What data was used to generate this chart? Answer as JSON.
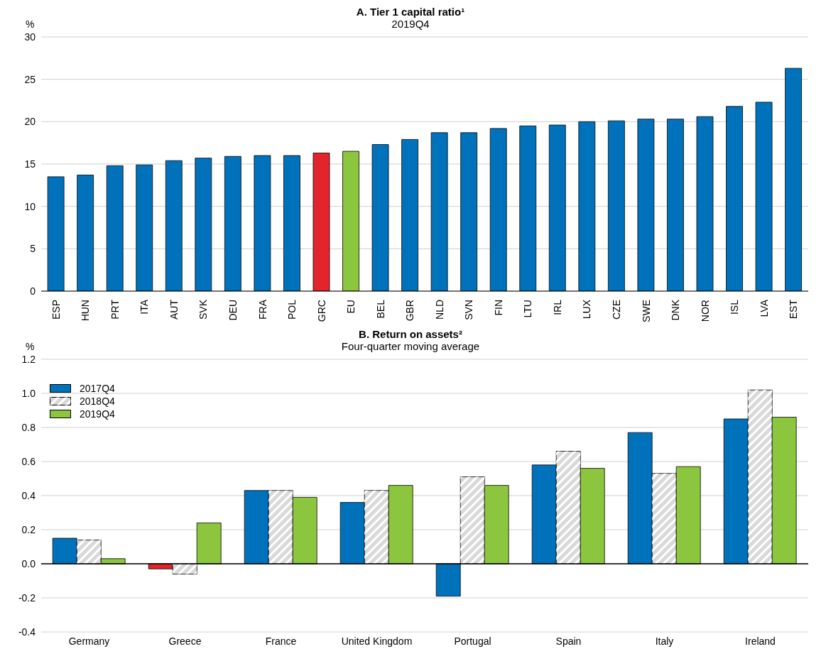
{
  "chart_data": [
    {
      "type": "bar",
      "title": "A. Tier 1 capital ratio¹",
      "subtitle": "2019Q4",
      "ylabel": "%",
      "categories": [
        "ESP",
        "HUN",
        "PRT",
        "ITA",
        "AUT",
        "SVK",
        "DEU",
        "FRA",
        "POL",
        "GRC",
        "EU",
        "BEL",
        "GBR",
        "NLD",
        "SVN",
        "FIN",
        "LTU",
        "IRL",
        "LUX",
        "CZE",
        "SWE",
        "DNK",
        "NOR",
        "ISL",
        "LVA",
        "EST"
      ],
      "values": [
        13.5,
        13.7,
        14.8,
        14.9,
        15.4,
        15.7,
        15.9,
        16.0,
        16.0,
        16.3,
        16.5,
        17.3,
        17.9,
        18.7,
        18.7,
        19.2,
        19.5,
        19.6,
        20.0,
        20.1,
        20.3,
        20.3,
        20.6,
        21.8,
        22.3,
        26.3
      ],
      "colors": [
        "#0072bc",
        "#0072bc",
        "#0072bc",
        "#0072bc",
        "#0072bc",
        "#0072bc",
        "#0072bc",
        "#0072bc",
        "#0072bc",
        "#e3242b",
        "#8cc63f",
        "#0072bc",
        "#0072bc",
        "#0072bc",
        "#0072bc",
        "#0072bc",
        "#0072bc",
        "#0072bc",
        "#0072bc",
        "#0072bc",
        "#0072bc",
        "#0072bc",
        "#0072bc",
        "#0072bc",
        "#0072bc",
        "#0072bc"
      ],
      "ylim": [
        0,
        30
      ],
      "yticks": [
        0,
        5,
        10,
        15,
        20,
        25,
        30
      ],
      "grid": "y",
      "legend": false
    },
    {
      "type": "bar",
      "title": "B. Return on assets²",
      "subtitle": "Four-quarter moving average",
      "ylabel": "%",
      "categories": [
        "Germany",
        "Greece",
        "France",
        "United Kingdom",
        "Portugal",
        "Spain",
        "Italy",
        "Ireland"
      ],
      "series": [
        {
          "name": "2017Q4",
          "color": "#0072bc",
          "colors": [
            "#0072bc",
            "#e3242b",
            "#0072bc",
            "#0072bc",
            "#0072bc",
            "#0072bc",
            "#0072bc",
            "#0072bc"
          ],
          "values": [
            0.15,
            -0.03,
            0.43,
            0.36,
            -0.19,
            0.58,
            0.77,
            0.85
          ]
        },
        {
          "name": "2018Q4",
          "color": "#d9d9d9",
          "values": [
            0.14,
            -0.06,
            0.43,
            0.43,
            0.51,
            0.66,
            0.53,
            1.02
          ]
        },
        {
          "name": "2019Q4",
          "color": "#8cc63f",
          "values": [
            0.03,
            0.24,
            0.39,
            0.46,
            0.46,
            0.56,
            0.57,
            0.86
          ]
        }
      ],
      "ylim": [
        -0.4,
        1.2
      ],
      "yticks": [
        {
          "value": -0.4,
          "label": "-0.4"
        },
        {
          "value": -0.2,
          "label": "-0.2"
        },
        {
          "value": 0,
          "label": "0.0"
        },
        {
          "value": 0.2,
          "label": "0.2"
        },
        {
          "value": 0.4,
          "label": "0.4"
        },
        {
          "value": 0.6,
          "label": "0.6"
        },
        {
          "value": 0.8,
          "label": "0.8"
        },
        {
          "value": 1,
          "label": "1.0"
        },
        {
          "value": 1.2,
          "label": "1.2"
        }
      ],
      "ref_lines": [
        {
          "axis": "y",
          "value": 0,
          "color": "#000000"
        }
      ],
      "grid": "y",
      "legend": "top left"
    }
  ]
}
